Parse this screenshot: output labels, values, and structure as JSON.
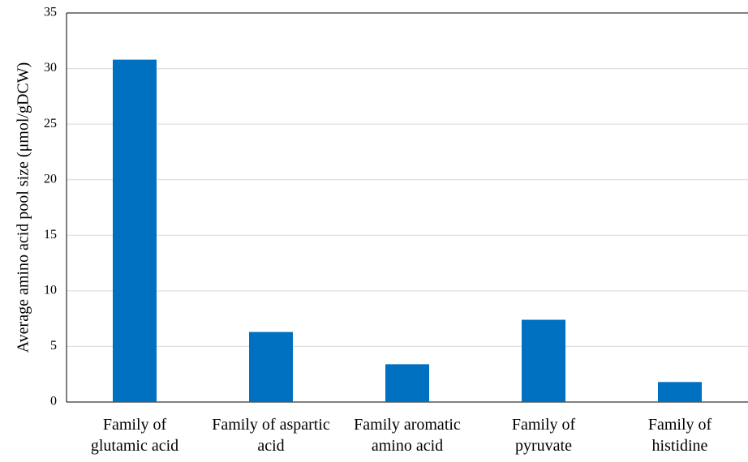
{
  "chart_data": {
    "type": "bar",
    "y_label": "Average amino acid pool size (μmol/gDCW)",
    "categories": [
      "Family of glutamic acid",
      "Family of aspartic acid",
      "Family aromatic amino acid",
      "Family of pyruvate",
      "Family of histidine"
    ],
    "values": [
      30.8,
      6.3,
      3.4,
      7.4,
      1.8
    ],
    "color": "#0070c0",
    "ylim": [
      0,
      35
    ],
    "yticks": [
      0,
      5,
      10,
      15,
      20,
      25,
      30,
      35
    ],
    "grid": true
  }
}
